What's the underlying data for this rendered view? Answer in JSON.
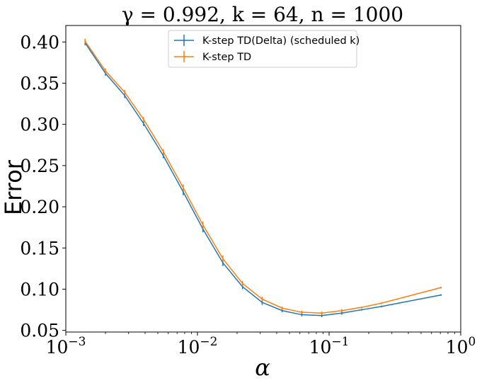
{
  "chart_data": {
    "type": "line",
    "title": "γ = 0.992, k = 64, n = 1000",
    "xlabel": "α",
    "ylabel": "Error",
    "xscale": "log",
    "xlim": [
      0.001,
      1
    ],
    "ylim": [
      0.048,
      0.42
    ],
    "xticks": [
      {
        "value": 0.001,
        "base": "10",
        "exp": "−3"
      },
      {
        "value": 0.01,
        "base": "10",
        "exp": "−2"
      },
      {
        "value": 0.1,
        "base": "10",
        "exp": "−1"
      },
      {
        "value": 1,
        "base": "10",
        "exp": "0"
      }
    ],
    "yticks": [
      {
        "value": 0.05,
        "label": "0.05"
      },
      {
        "value": 0.1,
        "label": "0.10"
      },
      {
        "value": 0.15,
        "label": "0.15"
      },
      {
        "value": 0.2,
        "label": "0.20"
      },
      {
        "value": 0.25,
        "label": "0.25"
      },
      {
        "value": 0.3,
        "label": "0.30"
      },
      {
        "value": 0.35,
        "label": "0.35"
      },
      {
        "value": 0.4,
        "label": "0.40"
      }
    ],
    "grid": false,
    "legend_position": "top-center",
    "x": [
      0.0014,
      0.002,
      0.0028,
      0.0039,
      0.0055,
      0.0078,
      0.011,
      0.0156,
      0.022,
      0.031,
      0.044,
      0.062,
      0.088,
      0.125,
      0.177,
      0.25,
      0.71
    ],
    "series": [
      {
        "name": "K-step TD(Delta) (scheduled k)",
        "color": "#1f77b4",
        "values": [
          0.399,
          0.362,
          0.335,
          0.301,
          0.262,
          0.218,
          0.173,
          0.132,
          0.103,
          0.084,
          0.074,
          0.069,
          0.068,
          0.071,
          0.075,
          0.079,
          0.093
        ],
        "errors": [
          0.003,
          0.003,
          0.003,
          0.003,
          0.003,
          0.004,
          0.004,
          0.004,
          0.003,
          0.003,
          0.002,
          0.002,
          0.002,
          0.002,
          0.001,
          0.001,
          0.001
        ]
      },
      {
        "name": "K-step TD",
        "color": "#ff7f0e",
        "values": [
          0.401,
          0.365,
          0.339,
          0.306,
          0.267,
          0.223,
          0.178,
          0.137,
          0.107,
          0.088,
          0.077,
          0.072,
          0.071,
          0.074,
          0.078,
          0.083,
          0.102
        ],
        "errors": [
          0.003,
          0.003,
          0.003,
          0.003,
          0.003,
          0.004,
          0.004,
          0.004,
          0.003,
          0.003,
          0.002,
          0.002,
          0.002,
          0.002,
          0.001,
          0.001,
          0.001
        ]
      }
    ]
  }
}
